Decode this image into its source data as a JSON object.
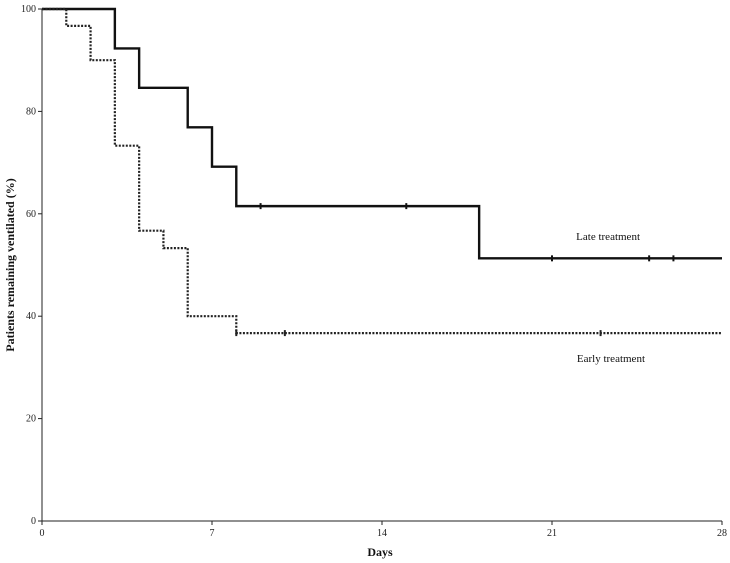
{
  "chart_data": {
    "type": "line",
    "title": "",
    "xlabel": "Days",
    "ylabel": "Patients remaining ventilated (%)",
    "xlim": [
      0,
      28
    ],
    "ylim": [
      0,
      100
    ],
    "x_ticks": [
      0,
      7,
      14,
      21,
      28
    ],
    "y_ticks": [
      0,
      20,
      40,
      60,
      80,
      100
    ],
    "grid": false,
    "legend": "inline labels",
    "series": [
      {
        "name": "Late treatment",
        "style": "solid",
        "color": "#111111",
        "steps": [
          [
            0,
            100
          ],
          [
            3,
            92.3
          ],
          [
            4,
            84.6
          ],
          [
            6,
            76.9
          ],
          [
            7,
            69.2
          ],
          [
            8,
            61.5
          ],
          [
            18,
            51.3
          ],
          [
            28,
            51.3
          ]
        ],
        "censored": [
          [
            9,
            61.5
          ],
          [
            15,
            61.5
          ],
          [
            21,
            51.3
          ],
          [
            25,
            51.3
          ],
          [
            26,
            51.3
          ]
        ]
      },
      {
        "name": "Early treatment",
        "style": "dotted",
        "color": "#222222",
        "steps": [
          [
            0,
            100
          ],
          [
            1,
            96.7
          ],
          [
            2,
            90
          ],
          [
            3,
            73.3
          ],
          [
            4,
            56.7
          ],
          [
            5,
            53.3
          ],
          [
            6,
            40
          ],
          [
            8,
            36.7
          ],
          [
            28,
            36.7
          ]
        ],
        "censored": [
          [
            8,
            36.7
          ],
          [
            10,
            36.7
          ],
          [
            23,
            36.7
          ]
        ]
      }
    ]
  }
}
